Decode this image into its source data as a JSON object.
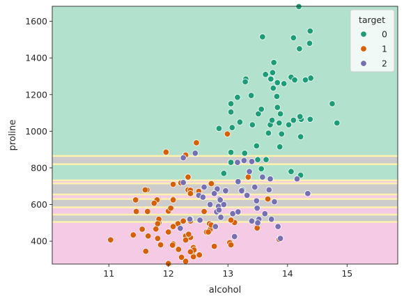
{
  "chart_data": {
    "type": "scatter",
    "title": "",
    "xlabel": "alcohol",
    "ylabel": "proline",
    "xlim": [
      10.05,
      15.85
    ],
    "ylim": [
      275,
      1682
    ],
    "xticks": [
      11,
      12,
      13,
      14,
      15
    ],
    "yticks": [
      400,
      600,
      800,
      1000,
      1200,
      1400,
      1600
    ],
    "grid": false,
    "legend": {
      "title": "target",
      "placement": "top-right"
    },
    "colors": {
      "class_0": "#1b9e77",
      "class_1": "#d95f02",
      "class_2": "#7570b3",
      "region_0": "#b2e2cd",
      "region_1": "#f4cae4",
      "region_2": "#cccccc",
      "boundary": "#fff2ae"
    },
    "decision_regions": [
      {
        "class": "1",
        "y_from": 275,
        "y_to": 505
      },
      {
        "class": "2",
        "y_from": 505,
        "y_to": 545
      },
      {
        "class": "1",
        "y_from": 545,
        "y_to": 585
      },
      {
        "class": "2",
        "y_from": 585,
        "y_to": 630
      },
      {
        "class": "1",
        "y_from": 630,
        "y_to": 655
      },
      {
        "class": "2",
        "y_from": 655,
        "y_to": 715
      },
      {
        "class": "1",
        "y_from": 715,
        "y_to": 732
      },
      {
        "class": "0",
        "y_from": 732,
        "y_to": 820
      },
      {
        "class": "2",
        "y_from": 820,
        "y_to": 865
      },
      {
        "class": "0",
        "y_from": 865,
        "y_to": 1682
      }
    ],
    "series": [
      {
        "name": "0",
        "points": [
          [
            14.23,
            1065
          ],
          [
            13.2,
            1050
          ],
          [
            13.16,
            1185
          ],
          [
            14.37,
            1480
          ],
          [
            14.2,
            1450
          ],
          [
            14.39,
            1290
          ],
          [
            14.06,
            1295
          ],
          [
            14.83,
            1045
          ],
          [
            13.86,
            1045
          ],
          [
            14.1,
            1510
          ],
          [
            14.12,
            1280
          ],
          [
            13.75,
            1320
          ],
          [
            14.75,
            1150
          ],
          [
            14.38,
            1547
          ],
          [
            13.63,
            1310
          ],
          [
            14.3,
            1280
          ],
          [
            13.83,
            1130
          ],
          [
            14.19,
            1680
          ],
          [
            13.64,
            845
          ],
          [
            14.06,
            780
          ],
          [
            12.93,
            770
          ],
          [
            13.71,
            1035
          ],
          [
            12.85,
            1015
          ],
          [
            13.5,
            845
          ],
          [
            13.05,
            830
          ],
          [
            13.39,
            1195
          ],
          [
            13.3,
            1285
          ],
          [
            13.87,
            915
          ],
          [
            14.02,
            1035
          ],
          [
            13.73,
            1285
          ],
          [
            13.58,
            1515
          ],
          [
            13.68,
            990
          ],
          [
            13.76,
            1235
          ],
          [
            13.51,
            1095
          ],
          [
            13.48,
            920
          ],
          [
            13.28,
            880
          ],
          [
            13.05,
            1105
          ],
          [
            13.07,
            1020
          ],
          [
            14.22,
            760
          ],
          [
            13.56,
            795
          ],
          [
            13.41,
            1035
          ],
          [
            13.88,
            1095
          ],
          [
            13.24,
            680
          ],
          [
            13.05,
            885
          ],
          [
            14.21,
            1080
          ],
          [
            14.38,
            1065
          ],
          [
            13.9,
            985
          ],
          [
            14.1,
            1060
          ],
          [
            13.94,
            1260
          ],
          [
            13.05,
            1150
          ],
          [
            13.83,
            1265
          ],
          [
            13.82,
            1190
          ],
          [
            13.77,
            1375
          ],
          [
            13.74,
            1060
          ],
          [
            13.56,
            1120
          ],
          [
            14.22,
            970
          ],
          [
            13.29,
            1270
          ],
          [
            13.72,
            1285
          ]
        ]
      },
      {
        "name": "1",
        "points": [
          [
            12.37,
            520
          ],
          [
            12.33,
            680
          ],
          [
            12.64,
            450
          ],
          [
            13.67,
            630
          ],
          [
            12.37,
            420
          ],
          [
            12.17,
            355
          ],
          [
            12.37,
            678
          ],
          [
            13.11,
            502
          ],
          [
            12.37,
            510
          ],
          [
            13.34,
            750
          ],
          [
            12.21,
            718
          ],
          [
            12.29,
            870
          ],
          [
            13.86,
            410
          ],
          [
            13.49,
            472
          ],
          [
            12.99,
            985
          ],
          [
            11.96,
            886
          ],
          [
            11.66,
            428
          ],
          [
            13.03,
            392
          ],
          [
            11.84,
            500
          ],
          [
            12.33,
            750
          ],
          [
            12.7,
            463
          ],
          [
            12,
            278
          ],
          [
            12.72,
            714
          ],
          [
            12.08,
            630
          ],
          [
            13.05,
            515
          ],
          [
            11.84,
            520
          ],
          [
            12.67,
            450
          ],
          [
            12.16,
            495
          ],
          [
            11.65,
            562
          ],
          [
            11.64,
            680
          ],
          [
            12.08,
            625
          ],
          [
            12.08,
            480
          ],
          [
            12,
            450
          ],
          [
            12.69,
            495
          ],
          [
            12.29,
            290
          ],
          [
            11.62,
            345
          ],
          [
            12.47,
            937
          ],
          [
            11.81,
            625
          ],
          [
            12.29,
            428
          ],
          [
            12.37,
            660
          ],
          [
            12.29,
            406
          ],
          [
            12.08,
            710
          ],
          [
            12.6,
            562
          ],
          [
            12.34,
            438
          ],
          [
            11.82,
            415
          ],
          [
            12.51,
            672
          ],
          [
            12.42,
            315
          ],
          [
            12.25,
            510
          ],
          [
            12.72,
            488
          ],
          [
            12.22,
            312
          ],
          [
            11.61,
            680
          ],
          [
            11.46,
            562
          ],
          [
            12.52,
            325
          ],
          [
            11.76,
            607
          ],
          [
            11.41,
            434
          ],
          [
            12.08,
            385
          ],
          [
            11.03,
            407
          ],
          [
            11.82,
            495
          ],
          [
            12.42,
            345
          ],
          [
            12.77,
            372
          ],
          [
            12,
            564
          ],
          [
            11.45,
            625
          ],
          [
            11.56,
            465
          ],
          [
            12.42,
            365
          ],
          [
            13.05,
            380
          ],
          [
            11.87,
            380
          ],
          [
            12.07,
            378
          ],
          [
            12.43,
            352
          ],
          [
            11.79,
            466
          ],
          [
            12.37,
            342
          ],
          [
            12.04,
            580
          ]
        ]
      },
      {
        "name": "2",
        "points": [
          [
            12.86,
            630
          ],
          [
            12.88,
            530
          ],
          [
            12.81,
            560
          ],
          [
            12.7,
            600
          ],
          [
            12.51,
            650
          ],
          [
            12.6,
            695
          ],
          [
            12.25,
            720
          ],
          [
            12.53,
            515
          ],
          [
            13.49,
            580
          ],
          [
            12.84,
            590
          ],
          [
            12.93,
            600
          ],
          [
            13.36,
            780
          ],
          [
            13.52,
            520
          ],
          [
            13.62,
            550
          ],
          [
            12.25,
            855
          ],
          [
            13.16,
            830
          ],
          [
            13.88,
            415
          ],
          [
            12.87,
            625
          ],
          [
            13.32,
            650
          ],
          [
            13.08,
            550
          ],
          [
            13.5,
            500
          ],
          [
            12.79,
            480
          ],
          [
            13.11,
            425
          ],
          [
            13.23,
            675
          ],
          [
            12.58,
            640
          ],
          [
            13.17,
            725
          ],
          [
            13.84,
            480
          ],
          [
            12.45,
            880
          ],
          [
            14.34,
            660
          ],
          [
            13.48,
            620
          ],
          [
            12.36,
            520
          ],
          [
            13.69,
            680
          ],
          [
            12.85,
            570
          ],
          [
            12.96,
            675
          ],
          [
            13.78,
            615
          ],
          [
            13.73,
            520
          ],
          [
            13.45,
            695
          ],
          [
            12.82,
            685
          ],
          [
            13.58,
            750
          ],
          [
            13.4,
            510
          ],
          [
            12.2,
            470
          ],
          [
            12.77,
            660
          ],
          [
            14.16,
            740
          ],
          [
            13.71,
            740
          ],
          [
            13.4,
            835
          ],
          [
            13.27,
            840
          ],
          [
            13.17,
            560
          ]
        ]
      }
    ]
  }
}
